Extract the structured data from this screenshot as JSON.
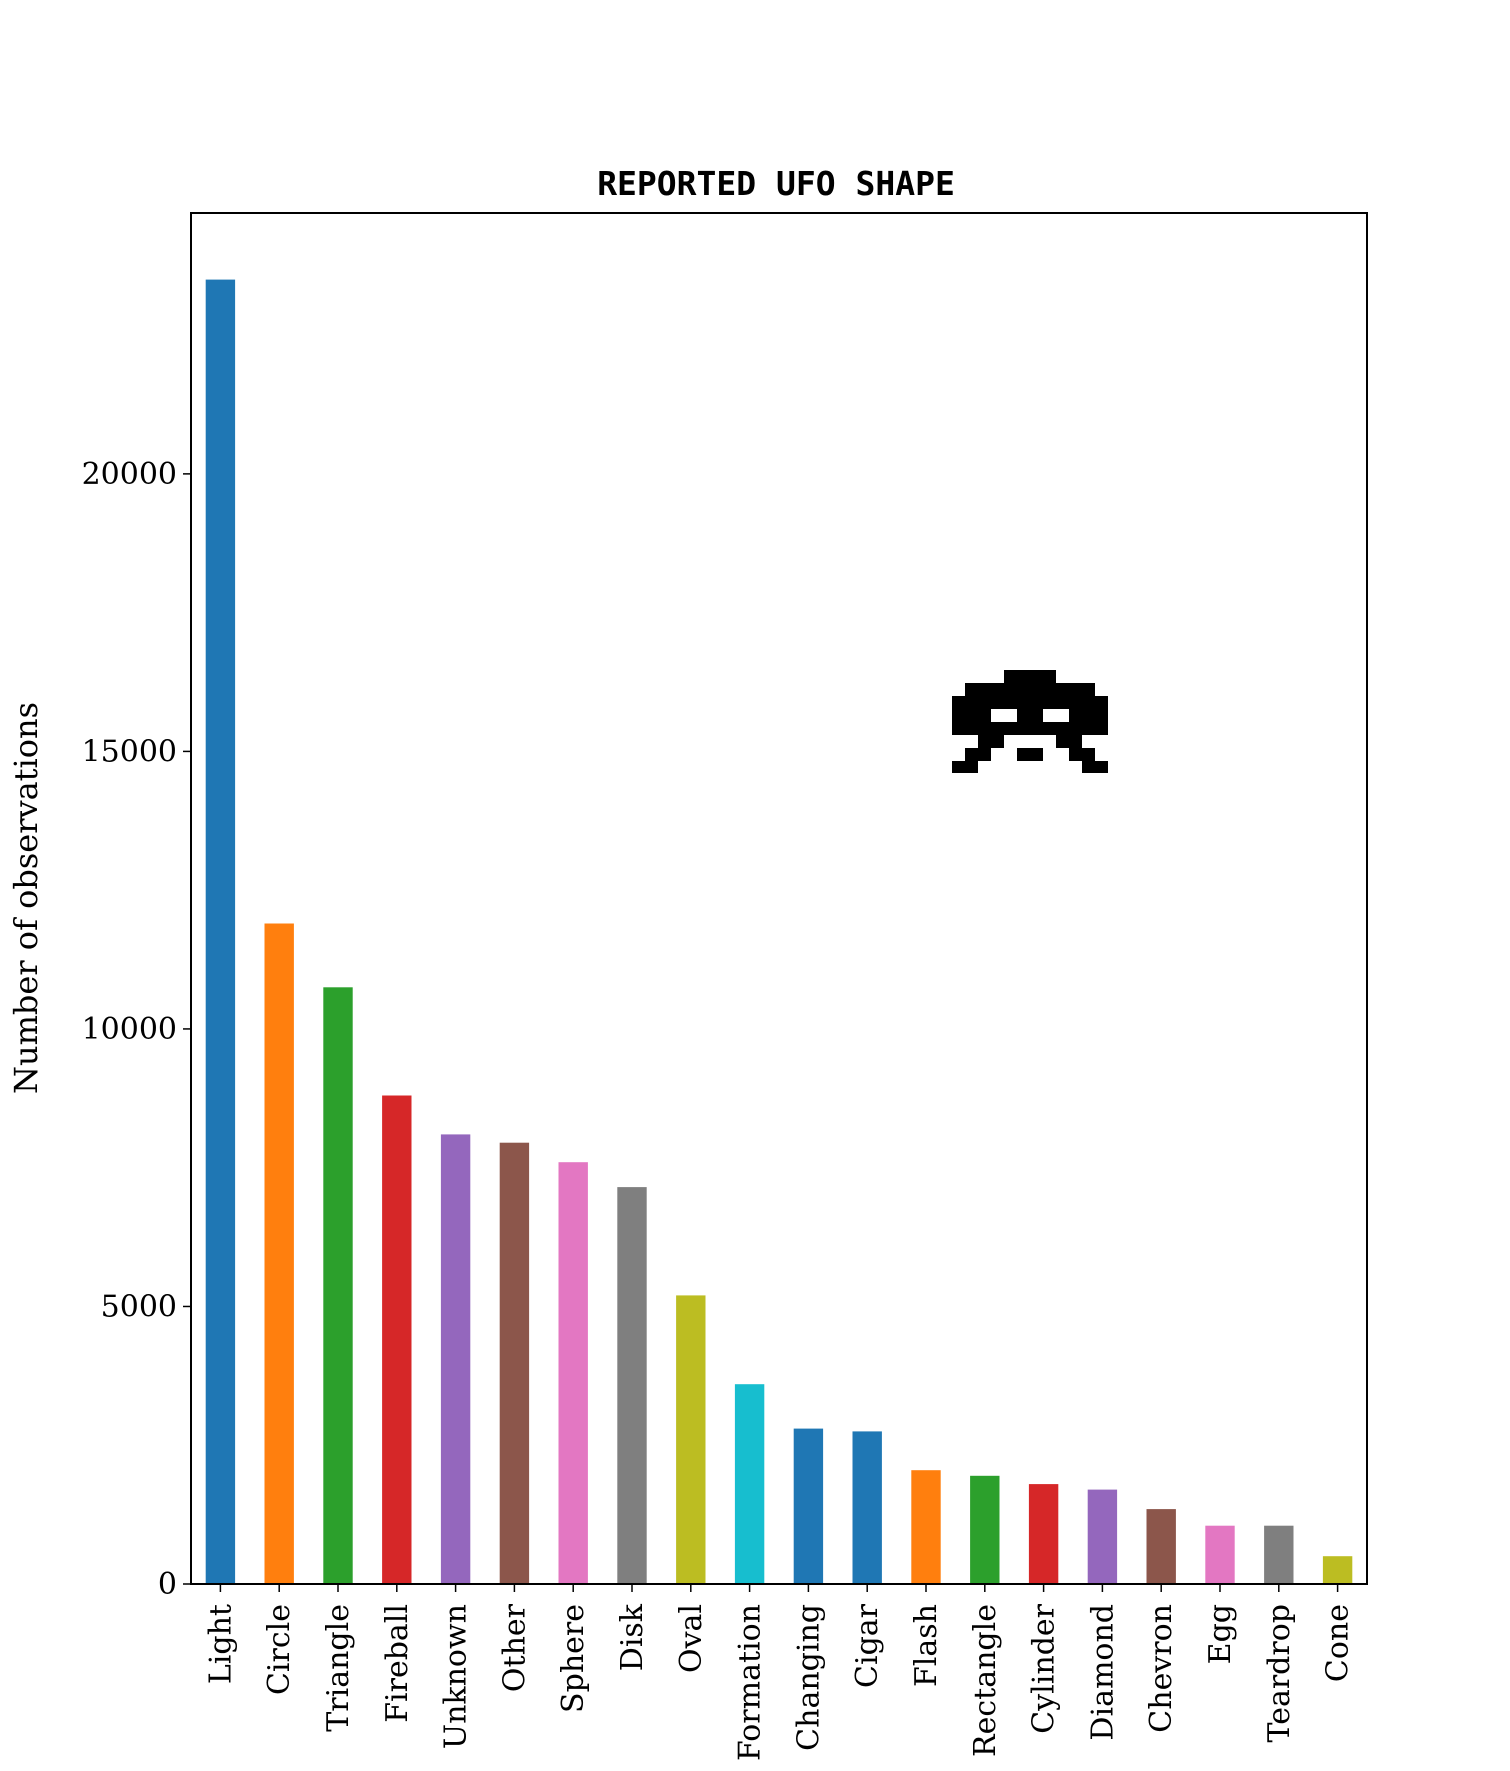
{
  "chart_data": {
    "type": "bar",
    "title": "REPORTED UFO SHAPE",
    "xlabel": "",
    "ylabel": "Number of observations",
    "ylim": [
      0,
      24700
    ],
    "yticks": [
      0,
      5000,
      10000,
      15000,
      20000
    ],
    "ytick_labels": [
      "0",
      "5000",
      "10000",
      "15000",
      "20000"
    ],
    "grid": false,
    "legend": "none",
    "categories": [
      "Light",
      "Circle",
      "Triangle",
      "Fireball",
      "Unknown",
      "Other",
      "Sphere",
      "Disk",
      "Oval",
      "Formation",
      "Changing",
      "Cigar",
      "Flash",
      "Rectangle",
      "Cylinder",
      "Diamond",
      "Chevron",
      "Egg",
      "Teardrop",
      "Cone"
    ],
    "values": [
      23500,
      11900,
      10750,
      8800,
      8100,
      7950,
      7600,
      7150,
      5200,
      3600,
      2800,
      2750,
      2050,
      1950,
      1800,
      1700,
      1350,
      1050,
      1050,
      500
    ],
    "colors": [
      "#1f77b4",
      "#ff7f0e",
      "#2ca02c",
      "#d62728",
      "#9467bd",
      "#8c564b",
      "#e377c2",
      "#7f7f7f",
      "#bcbd22",
      "#17becf",
      "#1f77b4",
      "#1f77b4",
      "#ff7f0e",
      "#2ca02c",
      "#d62728",
      "#9467bd",
      "#8c564b",
      "#e377c2",
      "#7f7f7f",
      "#bcbd22"
    ],
    "decoration": "space-invader-icon"
  }
}
